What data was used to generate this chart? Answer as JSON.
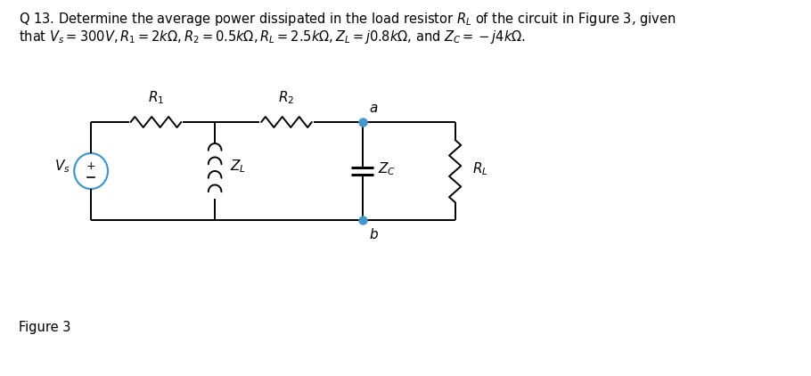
{
  "bg_color": "#ffffff",
  "text_color": "#000000",
  "line_color": "#000000",
  "dot_color": "#4499cc",
  "title_line1": "Q 13. Determine the average power dissipated in the load resistor $R_L$ of the circuit in Figure 3, given",
  "title_line2": "that $V_s = 300V, R_1 = 2k\\Omega, R_2 = 0.5k\\Omega, R_L = 2.5k\\Omega, Z_L = j0.8k\\Omega$, and $Z_C = -j4k\\Omega$.",
  "figure_label": "Figure 3",
  "fig_width": 9.1,
  "fig_height": 4.22,
  "dpi": 100,
  "lw": 1.4,
  "src_circle_color": "#4499cc"
}
